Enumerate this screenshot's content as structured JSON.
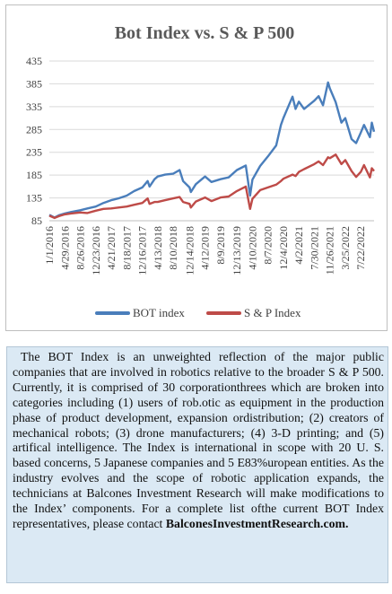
{
  "chart_data": {
    "type": "line",
    "title": "Bot Index vs. S & P 500",
    "xlabel": "",
    "ylabel": "",
    "ylim": [
      85,
      435
    ],
    "yticks": [
      85,
      135,
      185,
      235,
      285,
      335,
      385,
      435
    ],
    "xlim": [
      "1/1/2016",
      "11/1/2022"
    ],
    "xticks": [
      "1/1/2016",
      "4/29/2016",
      "8/26/2016",
      "12/23/2016",
      "4/21/2017",
      "8/18/2017",
      "12/16/2017",
      "4/13/2018",
      "8/10/2018",
      "12/14/2018",
      "4/12/2019",
      "8/9/2019",
      "12/13/2019",
      "4/10/2020",
      "8/7/2020",
      "12/4/2020",
      "4/2/2021",
      "7/30/2021",
      "11/26/2021",
      "3/25/2022",
      "7/22/2022"
    ],
    "grid": true,
    "legend_position": "bottom",
    "series": [
      {
        "name": "BOT index",
        "color": "#4a7ebb",
        "points": [
          [
            "1/1/2016",
            98
          ],
          [
            "2/10/2016",
            92
          ],
          [
            "3/15/2016",
            97
          ],
          [
            "4/29/2016",
            101
          ],
          [
            "6/15/2016",
            104
          ],
          [
            "8/26/2016",
            108
          ],
          [
            "10/20/2016",
            112
          ],
          [
            "12/23/2016",
            116
          ],
          [
            "2/20/2017",
            124
          ],
          [
            "4/21/2017",
            130
          ],
          [
            "6/15/2017",
            134
          ],
          [
            "8/18/2017",
            140
          ],
          [
            "10/15/2017",
            150
          ],
          [
            "12/16/2017",
            158
          ],
          [
            "1/26/2018",
            172
          ],
          [
            "2/9/2018",
            160
          ],
          [
            "3/20/2018",
            176
          ],
          [
            "4/13/2018",
            182
          ],
          [
            "6/10/2018",
            186
          ],
          [
            "8/10/2018",
            188
          ],
          [
            "9/28/2018",
            196
          ],
          [
            "10/25/2018",
            172
          ],
          [
            "12/14/2018",
            158
          ],
          [
            "12/24/2018",
            148
          ],
          [
            "1/31/2019",
            165
          ],
          [
            "4/12/2019",
            182
          ],
          [
            "5/31/2019",
            170
          ],
          [
            "8/9/2019",
            176
          ],
          [
            "10/10/2019",
            180
          ],
          [
            "12/13/2019",
            196
          ],
          [
            "2/19/2020",
            206
          ],
          [
            "3/23/2020",
            140
          ],
          [
            "4/10/2020",
            175
          ],
          [
            "6/8/2020",
            205
          ],
          [
            "8/7/2020",
            226
          ],
          [
            "10/10/2020",
            250
          ],
          [
            "11/15/2020",
            295
          ],
          [
            "12/4/2020",
            310
          ],
          [
            "2/12/2021",
            357
          ],
          [
            "3/8/2021",
            330
          ],
          [
            "4/2/2021",
            346
          ],
          [
            "5/12/2021",
            330
          ],
          [
            "7/30/2021",
            348
          ],
          [
            "9/1/2021",
            358
          ],
          [
            "10/5/2021",
            338
          ],
          [
            "11/12/2021",
            388
          ],
          [
            "11/26/2021",
            375
          ],
          [
            "1/10/2022",
            345
          ],
          [
            "2/23/2022",
            300
          ],
          [
            "3/25/2022",
            310
          ],
          [
            "5/12/2022",
            264
          ],
          [
            "6/16/2022",
            255
          ],
          [
            "7/22/2022",
            278
          ],
          [
            "8/16/2022",
            295
          ],
          [
            "9/30/2022",
            268
          ],
          [
            "10/15/2022",
            300
          ],
          [
            "11/1/2022",
            280
          ]
        ]
      },
      {
        "name": "S & P Index",
        "color": "#be4b48",
        "points": [
          [
            "1/1/2016",
            96
          ],
          [
            "2/10/2016",
            91
          ],
          [
            "3/15/2016",
            95
          ],
          [
            "4/29/2016",
            99
          ],
          [
            "6/15/2016",
            101
          ],
          [
            "8/26/2016",
            103
          ],
          [
            "10/20/2016",
            102
          ],
          [
            "12/23/2016",
            107
          ],
          [
            "2/20/2017",
            111
          ],
          [
            "4/21/2017",
            112
          ],
          [
            "6/15/2017",
            114
          ],
          [
            "8/18/2017",
            116
          ],
          [
            "10/15/2017",
            120
          ],
          [
            "12/16/2017",
            124
          ],
          [
            "1/26/2018",
            134
          ],
          [
            "2/9/2018",
            122
          ],
          [
            "3/20/2018",
            126
          ],
          [
            "4/13/2018",
            126
          ],
          [
            "6/10/2018",
            130
          ],
          [
            "8/10/2018",
            134
          ],
          [
            "9/28/2018",
            137
          ],
          [
            "10/25/2018",
            126
          ],
          [
            "12/14/2018",
            122
          ],
          [
            "12/24/2018",
            114
          ],
          [
            "1/31/2019",
            127
          ],
          [
            "4/12/2019",
            136
          ],
          [
            "5/31/2019",
            128
          ],
          [
            "8/9/2019",
            136
          ],
          [
            "10/10/2019",
            138
          ],
          [
            "12/13/2019",
            150
          ],
          [
            "2/19/2020",
            160
          ],
          [
            "3/23/2020",
            111
          ],
          [
            "4/10/2020",
            133
          ],
          [
            "6/8/2020",
            152
          ],
          [
            "8/7/2020",
            158
          ],
          [
            "10/10/2020",
            164
          ],
          [
            "11/15/2020",
            172
          ],
          [
            "12/4/2020",
            177
          ],
          [
            "2/12/2021",
            186
          ],
          [
            "3/8/2021",
            183
          ],
          [
            "4/2/2021",
            192
          ],
          [
            "5/12/2021",
            198
          ],
          [
            "7/30/2021",
            209
          ],
          [
            "9/1/2021",
            215
          ],
          [
            "10/5/2021",
            207
          ],
          [
            "11/12/2021",
            224
          ],
          [
            "11/26/2021",
            222
          ],
          [
            "1/10/2022",
            230
          ],
          [
            "2/23/2022",
            209
          ],
          [
            "3/25/2022",
            218
          ],
          [
            "5/12/2022",
            194
          ],
          [
            "6/16/2022",
            181
          ],
          [
            "7/22/2022",
            192
          ],
          [
            "8/16/2022",
            207
          ],
          [
            "9/30/2022",
            180
          ],
          [
            "10/15/2022",
            200
          ],
          [
            "11/1/2022",
            194
          ]
        ]
      }
    ]
  },
  "description": {
    "text": "The BOT Index is an unweighted reflection of the major public companies that are involved in robotics relative to the broader S & P 500. Currently, it is comprised of 30 corporationthrees which are broken into categories including (1) users of rob.otic as equipment in the production phase of product development, expansion ordistribution; (2) creators of mechanical robots; (3) drone manufacturers; (4) 3-D printing; and (5) artifical intelligence. The Index is international in scope with 20 U. S. based concerns, 5 Japanese companies and 5 E83%uropean entities. As the industry evolves and the scope of robotic application expands, the technicians at Balcones Investment Research will make modifications to the Index’ components. For a  complete list ofthe current BOT Index representatives, please contact ",
    "link": "BalconesInvestmentResearch.com."
  }
}
